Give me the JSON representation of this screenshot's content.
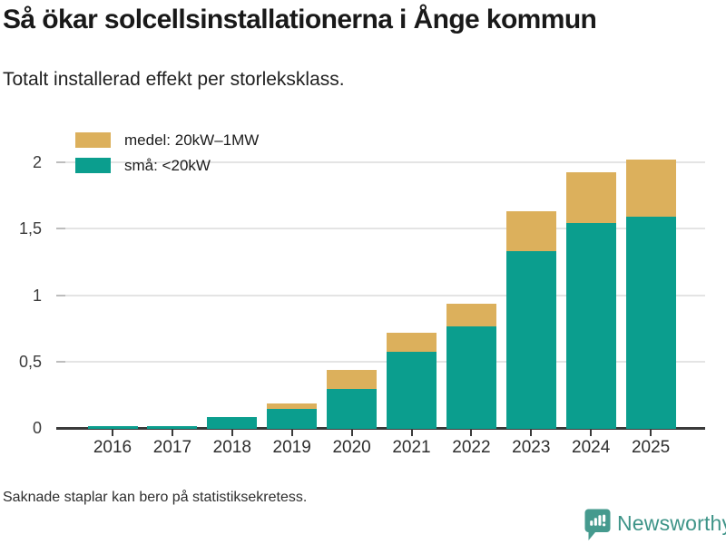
{
  "title": "Så ökar solcellsinstallationerna i Ånge kommun",
  "subtitle": "Totalt installerad effekt per storleksklass.",
  "footnote": "Saknade staplar kan bero på statistiksekretess.",
  "brand": {
    "name": "Newsworthy",
    "icon": "speech-bubble-bar-chart",
    "color": "#3e9488",
    "icon_color": "#459a8e"
  },
  "colors": {
    "medel": "#dcb05c",
    "sma": "#0b9e8e",
    "axis": "#3a3a3a",
    "gridline": "#e4e4e4"
  },
  "legend": [
    {
      "key": "medel",
      "label": "medel: 20kW–1MW",
      "color": "#dcb05c"
    },
    {
      "key": "sma",
      "label": "små: <20kW",
      "color": "#0b9e8e"
    }
  ],
  "chart_data": {
    "type": "bar",
    "stacked": true,
    "title": "Så ökar solcellsinstallationerna i Ånge kommun",
    "subtitle": "Totalt installerad effekt per storleksklass.",
    "categories": [
      "2016",
      "2017",
      "2018",
      "2019",
      "2020",
      "2021",
      "2022",
      "2023",
      "2024",
      "2025"
    ],
    "series": [
      {
        "name": "små: <20kW",
        "color": "#0b9e8e",
        "values": [
          0.02,
          0.02,
          0.09,
          0.15,
          0.3,
          0.58,
          0.77,
          1.34,
          1.55,
          1.6
        ]
      },
      {
        "name": "medel: 20kW–1MW",
        "color": "#dcb05c",
        "values": [
          0,
          0,
          0,
          0.04,
          0.14,
          0.14,
          0.17,
          0.3,
          0.38,
          0.43
        ]
      }
    ],
    "xlabel": "",
    "ylabel": "",
    "ylim": [
      0,
      2.1
    ],
    "yticks": [
      0,
      0.5,
      1,
      1.5,
      2
    ],
    "ytick_labels": [
      "0",
      "0,5",
      "1",
      "1,5",
      "2"
    ],
    "grid": true,
    "legend_position": "top-left"
  }
}
